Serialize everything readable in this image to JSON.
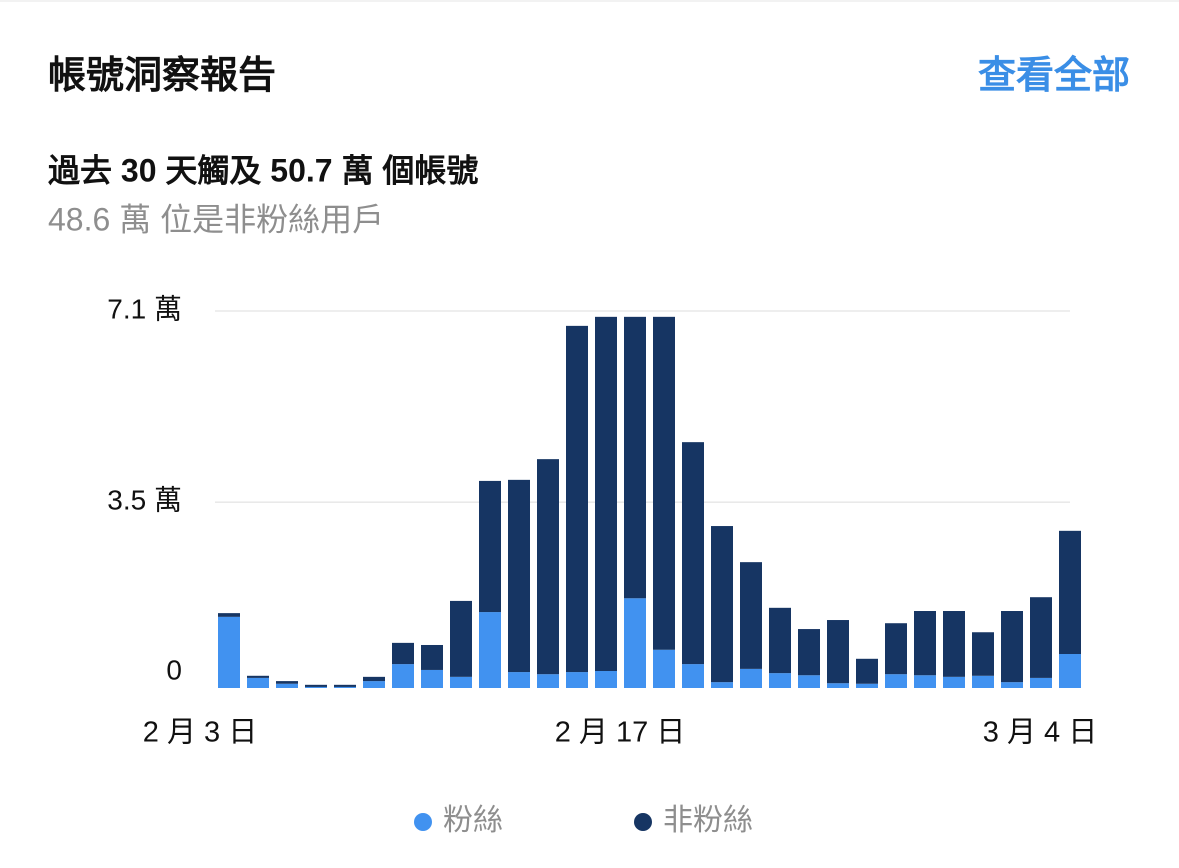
{
  "header": {
    "title": "帳號洞察報告",
    "link": "查看全部"
  },
  "summary": {
    "headline": "過去 30 天觸及 50.7 萬 個帳號",
    "detail": "48.6 萬 位是非粉絲用戶"
  },
  "chart_data": {
    "type": "stacked_bar",
    "categories": [
      "2 月 3 日",
      null,
      null,
      null,
      null,
      null,
      null,
      null,
      null,
      null,
      null,
      null,
      null,
      null,
      "2 月 17 日",
      null,
      null,
      null,
      null,
      null,
      null,
      null,
      null,
      null,
      null,
      null,
      null,
      null,
      null,
      "3 月 4 日"
    ],
    "series": [
      {
        "name": "粉絲",
        "color": "#4192f0",
        "values": [
          1.34,
          0.19,
          0.08,
          0.02,
          0.02,
          0.13,
          0.45,
          0.34,
          0.21,
          1.43,
          0.3,
          0.26,
          0.3,
          0.32,
          1.69,
          0.72,
          0.45,
          0.11,
          0.36,
          0.28,
          0.24,
          0.09,
          0.08,
          0.26,
          0.24,
          0.21,
          0.23,
          0.11,
          0.19,
          0.64
        ]
      },
      {
        "name": "非粉絲",
        "color": "#163563",
        "values": [
          0.07,
          0.04,
          0.05,
          0.04,
          0.04,
          0.08,
          0.4,
          0.47,
          1.43,
          2.47,
          3.62,
          4.05,
          6.52,
          6.67,
          5.3,
          6.27,
          4.18,
          2.94,
          2.01,
          1.23,
          0.87,
          1.19,
          0.47,
          0.96,
          1.21,
          1.24,
          0.82,
          1.34,
          1.52,
          2.32
        ]
      }
    ],
    "ylim": [
      0,
      7.1
    ],
    "yticks": [
      0,
      {
        "value": 3.5,
        "label": "3.5 萬"
      },
      {
        "value": 7.1,
        "label": "7.1 萬"
      }
    ],
    "grid": true,
    "legend": "bottom"
  }
}
